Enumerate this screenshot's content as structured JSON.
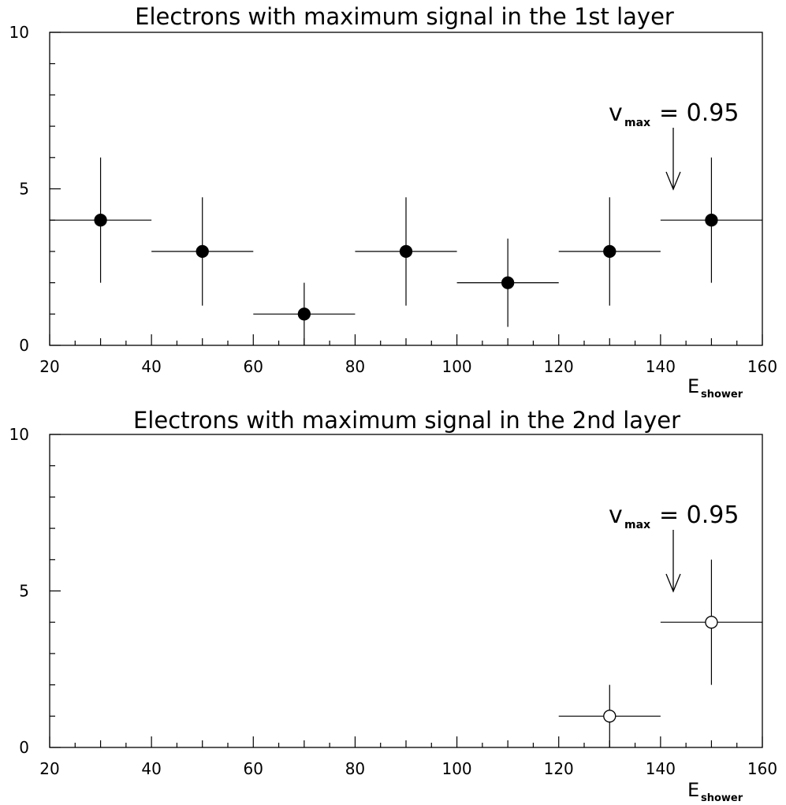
{
  "chart_data": [
    {
      "type": "scatter",
      "title": "Electrons with maximum signal in the 1st layer",
      "xlabel_main": "E",
      "xlabel_sub": "shower",
      "xlim": [
        20,
        160
      ],
      "ylim": [
        0,
        10
      ],
      "x_ticks": [
        "20",
        "40",
        "60",
        "80",
        "100",
        "120",
        "140",
        "160"
      ],
      "y_ticks": [
        "0",
        "5",
        "10"
      ],
      "grid": false,
      "marker": "filled-circle",
      "points": [
        {
          "x": 30,
          "y": 4,
          "x_err": 10,
          "y_err": 2.0
        },
        {
          "x": 50,
          "y": 3,
          "x_err": 10,
          "y_err": 1.73
        },
        {
          "x": 70,
          "y": 1,
          "x_err": 10,
          "y_err": 1.0
        },
        {
          "x": 90,
          "y": 3,
          "x_err": 10,
          "y_err": 1.73
        },
        {
          "x": 110,
          "y": 2,
          "x_err": 10,
          "y_err": 1.41
        },
        {
          "x": 130,
          "y": 3,
          "x_err": 10,
          "y_err": 1.73
        },
        {
          "x": 150,
          "y": 4,
          "x_err": 10,
          "y_err": 2.0
        }
      ],
      "annotation": {
        "main": "v",
        "sub": "max",
        "rest": "= 0.95",
        "arrow_x": 142.5
      }
    },
    {
      "type": "scatter",
      "title": "Electrons with maximum signal in the 2nd layer",
      "xlabel_main": "E",
      "xlabel_sub": "shower",
      "xlim": [
        20,
        160
      ],
      "ylim": [
        0,
        10
      ],
      "x_ticks": [
        "20",
        "40",
        "60",
        "80",
        "100",
        "120",
        "140",
        "160"
      ],
      "y_ticks": [
        "0",
        "5",
        "10"
      ],
      "grid": false,
      "marker": "open-circle",
      "points": [
        {
          "x": 130,
          "y": 1,
          "x_err": 10,
          "y_err": 1.0
        },
        {
          "x": 150,
          "y": 4,
          "x_err": 10,
          "y_err": 2.0
        }
      ],
      "annotation": {
        "main": "v",
        "sub": "max",
        "rest": "= 0.95",
        "arrow_x": 142.5
      }
    }
  ]
}
